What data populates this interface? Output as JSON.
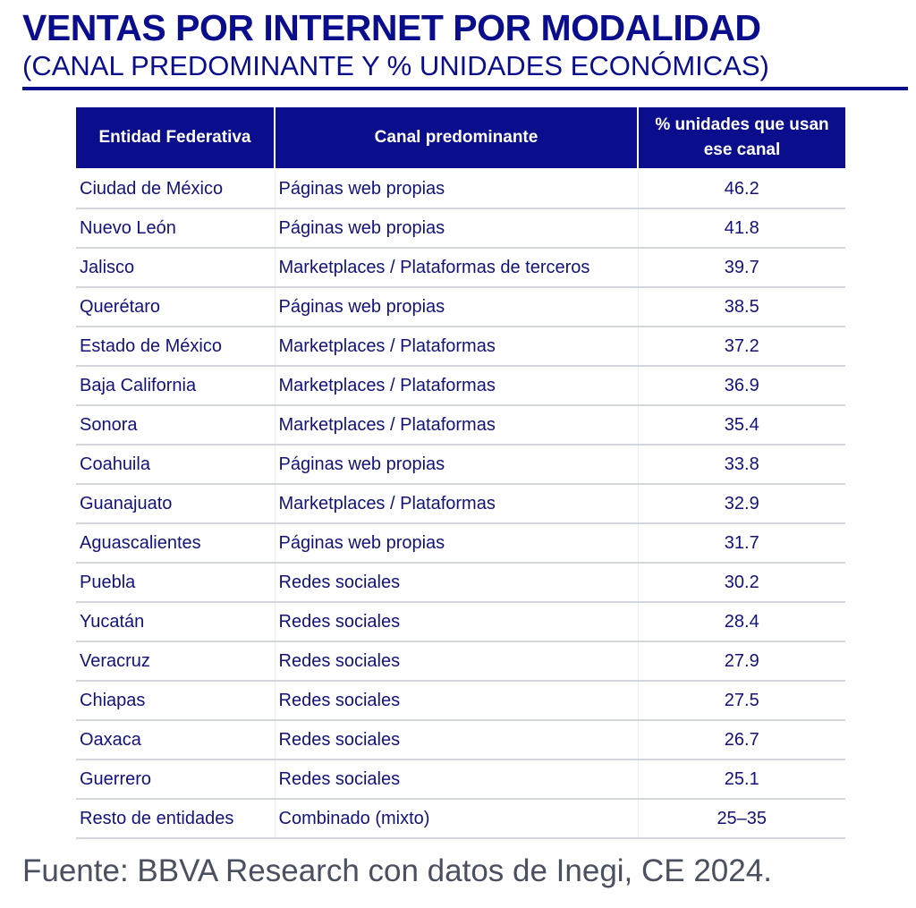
{
  "title": "VENTAS POR INTERNET POR MODALIDAD",
  "subtitle": "(CANAL PREDOMINANTE Y % UNIDADES ECONÓMICAS)",
  "table": {
    "headers": [
      "Entidad Federativa",
      "Canal predominante",
      "% unidades que usan ese canal"
    ],
    "rows": [
      [
        "Ciudad de México",
        "Páginas web propias",
        "46.2"
      ],
      [
        "Nuevo León",
        "Páginas web propias",
        "41.8"
      ],
      [
        "Jalisco",
        "Marketplaces / Plataformas de terceros",
        "39.7"
      ],
      [
        "Querétaro",
        "Páginas web propias",
        "38.5"
      ],
      [
        "Estado de México",
        "Marketplaces / Plataformas",
        "37.2"
      ],
      [
        "Baja California",
        "Marketplaces / Plataformas",
        "36.9"
      ],
      [
        "Sonora",
        "Marketplaces / Plataformas",
        "35.4"
      ],
      [
        "Coahuila",
        "Páginas web propias",
        "33.8"
      ],
      [
        "Guanajuato",
        "Marketplaces / Plataformas",
        "32.9"
      ],
      [
        "Aguascalientes",
        "Páginas web propias",
        "31.7"
      ],
      [
        "Puebla",
        "Redes sociales",
        "30.2"
      ],
      [
        "Yucatán",
        "Redes sociales",
        "28.4"
      ],
      [
        "Veracruz",
        "Redes sociales",
        "27.9"
      ],
      [
        "Chiapas",
        "Redes sociales",
        "27.5"
      ],
      [
        "Oaxaca",
        "Redes sociales",
        "26.7"
      ],
      [
        "Guerrero",
        "Redes sociales",
        "25.1"
      ],
      [
        "Resto de entidades",
        "Combinado (mixto)",
        "25–35"
      ]
    ]
  },
  "source": "Fuente: BBVA Research con datos de Inegi, CE 2024.",
  "colors": {
    "brand": "#0a0e8c",
    "text": "#12127a",
    "source": "#4a5060",
    "row_border": "#d3d7dc"
  }
}
